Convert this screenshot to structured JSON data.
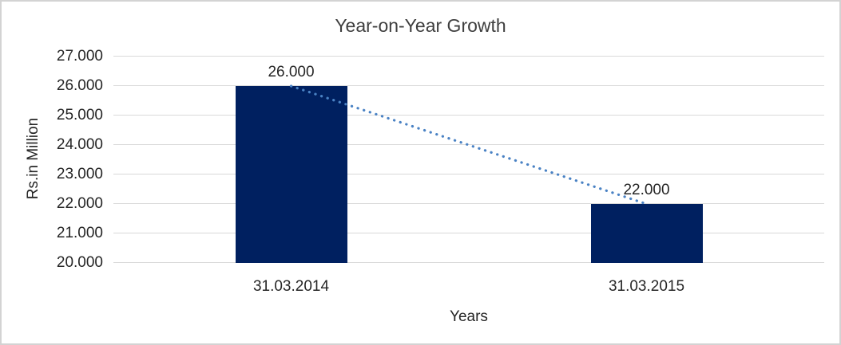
{
  "chart_data": {
    "type": "bar",
    "title": "Year-on-Year Growth",
    "xlabel": "Years",
    "ylabel": "Rs.in Million",
    "categories": [
      "31.03.2014",
      "31.03.2015"
    ],
    "values": [
      26000,
      22000
    ],
    "value_labels": [
      "26.000",
      "22.000"
    ],
    "ylim": [
      20000,
      27000
    ],
    "yticks": [
      {
        "value": 27000,
        "label": "27.000"
      },
      {
        "value": 26000,
        "label": "26.000"
      },
      {
        "value": 25000,
        "label": "25.000"
      },
      {
        "value": 24000,
        "label": "24.000"
      },
      {
        "value": 23000,
        "label": "23.000"
      },
      {
        "value": 22000,
        "label": "22.000"
      },
      {
        "value": 21000,
        "label": "21.000"
      },
      {
        "value": 20000,
        "label": "20.000"
      }
    ],
    "grid": "horizontal",
    "legend": "none",
    "colors": {
      "bar": "#002060",
      "trendline": "#4a82c4",
      "gridline": "#d9d9d9",
      "text": "#262626",
      "title_text": "#3f3f3f",
      "frame_border": "#d3d3d3",
      "background": "#ffffff"
    },
    "trendline": {
      "style": "dotted",
      "connects": "bar-top-centers"
    }
  }
}
